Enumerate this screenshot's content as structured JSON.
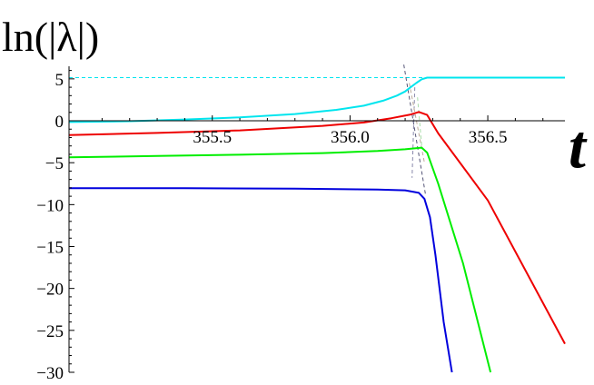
{
  "chart_data": {
    "type": "line",
    "ylabel": "ln(|λ|)",
    "xlabel": "t",
    "xlim": [
      354.98,
      356.78
    ],
    "ylim": [
      -30,
      6.5
    ],
    "grid": false,
    "x_ticks": [
      355.5,
      356.0,
      356.5
    ],
    "x_tick_labels": [
      "355.5",
      "356.0",
      "356.5"
    ],
    "y_ticks": [
      5,
      0,
      -5,
      -10,
      -15,
      -20,
      -25,
      -30
    ],
    "y_tick_labels": [
      "5",
      "0",
      "−5",
      "−10",
      "−15",
      "−20",
      "−25",
      "−30"
    ],
    "series": [
      {
        "color": "#00e5ee",
        "points": [
          [
            354.98,
            -0.15
          ],
          [
            355.2,
            -0.05
          ],
          [
            355.4,
            0.15
          ],
          [
            355.6,
            0.4
          ],
          [
            355.8,
            0.8
          ],
          [
            355.95,
            1.3
          ],
          [
            356.05,
            1.8
          ],
          [
            356.12,
            2.4
          ],
          [
            356.17,
            3.0
          ],
          [
            356.2,
            3.5
          ],
          [
            356.22,
            4.0
          ],
          [
            356.24,
            4.5
          ],
          [
            356.26,
            4.95
          ],
          [
            356.28,
            5.15
          ],
          [
            356.5,
            5.15
          ],
          [
            356.78,
            5.15
          ]
        ]
      },
      {
        "color": "#ee0000",
        "points": [
          [
            354.98,
            -1.7
          ],
          [
            355.3,
            -1.45
          ],
          [
            355.6,
            -1.15
          ],
          [
            355.9,
            -0.6
          ],
          [
            356.05,
            -0.2
          ],
          [
            356.15,
            0.3
          ],
          [
            356.22,
            0.75
          ],
          [
            356.25,
            1.05
          ],
          [
            356.28,
            0.7
          ],
          [
            356.32,
            -1.5
          ],
          [
            356.5,
            -9.5
          ],
          [
            356.78,
            -26.6
          ]
        ]
      },
      {
        "color": "#00ee00",
        "points": [
          [
            354.98,
            -4.35
          ],
          [
            355.3,
            -4.2
          ],
          [
            355.6,
            -4.05
          ],
          [
            355.9,
            -3.85
          ],
          [
            356.1,
            -3.6
          ],
          [
            356.2,
            -3.4
          ],
          [
            356.26,
            -3.2
          ],
          [
            356.28,
            -3.8
          ],
          [
            356.32,
            -7.5
          ],
          [
            356.41,
            -17.0
          ],
          [
            356.51,
            -30.0
          ]
        ]
      },
      {
        "color": "#0000dd",
        "points": [
          [
            354.98,
            -8.05
          ],
          [
            355.4,
            -8.05
          ],
          [
            355.8,
            -8.1
          ],
          [
            356.1,
            -8.2
          ],
          [
            356.2,
            -8.3
          ],
          [
            356.25,
            -8.6
          ],
          [
            356.27,
            -9.3
          ],
          [
            356.29,
            -11.5
          ],
          [
            356.31,
            -16.0
          ],
          [
            356.34,
            -24.0
          ],
          [
            356.37,
            -30.0
          ]
        ]
      }
    ],
    "guides": [
      {
        "color": "#00e5ee",
        "style": "dashed",
        "points": [
          [
            354.98,
            5.15
          ],
          [
            356.27,
            5.15
          ]
        ]
      },
      {
        "color": "#555577",
        "style": "dashed",
        "points": [
          [
            356.195,
            6.7
          ],
          [
            356.275,
            -9.0
          ]
        ]
      },
      {
        "color": "#8888aa",
        "style": "dashed",
        "points": [
          [
            356.235,
            4.0
          ],
          [
            356.225,
            -6.8
          ]
        ]
      },
      {
        "color": "#bbaa99",
        "style": "dashed",
        "points": [
          [
            356.215,
            4.5
          ],
          [
            356.27,
            -5.0
          ]
        ]
      },
      {
        "color": "#aaddaa",
        "style": "dashed",
        "points": [
          [
            356.245,
            2.8
          ],
          [
            356.26,
            -3.0
          ]
        ]
      }
    ]
  }
}
